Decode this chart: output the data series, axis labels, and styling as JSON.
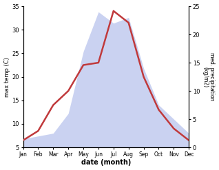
{
  "months": [
    "Jan",
    "Feb",
    "Mar",
    "Apr",
    "May",
    "Jun",
    "Jul",
    "Aug",
    "Sep",
    "Oct",
    "Nov",
    "Dec"
  ],
  "temp_C": [
    6.5,
    8.5,
    14.0,
    17.0,
    22.5,
    23.0,
    34.0,
    31.5,
    20.0,
    13.0,
    9.0,
    6.5
  ],
  "precip_kg": [
    1.5,
    2.0,
    2.5,
    6.0,
    17.0,
    24.0,
    22.0,
    23.0,
    14.0,
    7.5,
    5.0,
    2.5
  ],
  "temp_ylim": [
    5,
    35
  ],
  "precip_ylim": [
    0,
    25
  ],
  "temp_yticks": [
    5,
    10,
    15,
    20,
    25,
    30,
    35
  ],
  "precip_yticks": [
    0,
    5,
    10,
    15,
    20,
    25
  ],
  "ylabel_left": "max temp (C)",
  "ylabel_right": "med. precipitation\n(kg/m2)",
  "xlabel": "date (month)",
  "line_color": "#c0393b",
  "fill_color": "#c5cef0",
  "fill_alpha": 0.9,
  "line_width": 1.8,
  "background_color": "#ffffff"
}
